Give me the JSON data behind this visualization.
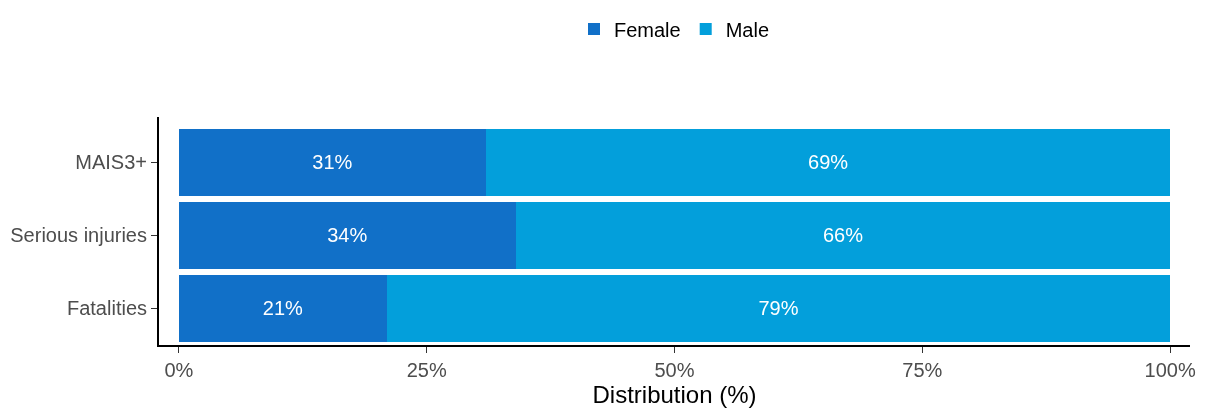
{
  "chart_data": {
    "type": "bar",
    "orientation": "horizontal",
    "stacked": true,
    "xlabel": "Distribution (%)",
    "categories": [
      "MAIS3+",
      "Serious injuries",
      "Fatalities"
    ],
    "series": [
      {
        "name": "Female",
        "color": "#1170c8",
        "values": [
          31,
          34,
          21
        ],
        "value_labels": [
          "31%",
          "34%",
          "21%"
        ]
      },
      {
        "name": "Male",
        "color": "#039fdb",
        "values": [
          69,
          66,
          79
        ],
        "value_labels": [
          "69%",
          "66%",
          "79%"
        ]
      }
    ],
    "xlim": [
      -2,
      102
    ],
    "xticks": [
      {
        "value": 0,
        "label": "0%"
      },
      {
        "value": 25,
        "label": "25%"
      },
      {
        "value": 50,
        "label": "50%"
      },
      {
        "value": 75,
        "label": "75%"
      },
      {
        "value": 100,
        "label": "100%"
      }
    ],
    "legend": "top"
  }
}
